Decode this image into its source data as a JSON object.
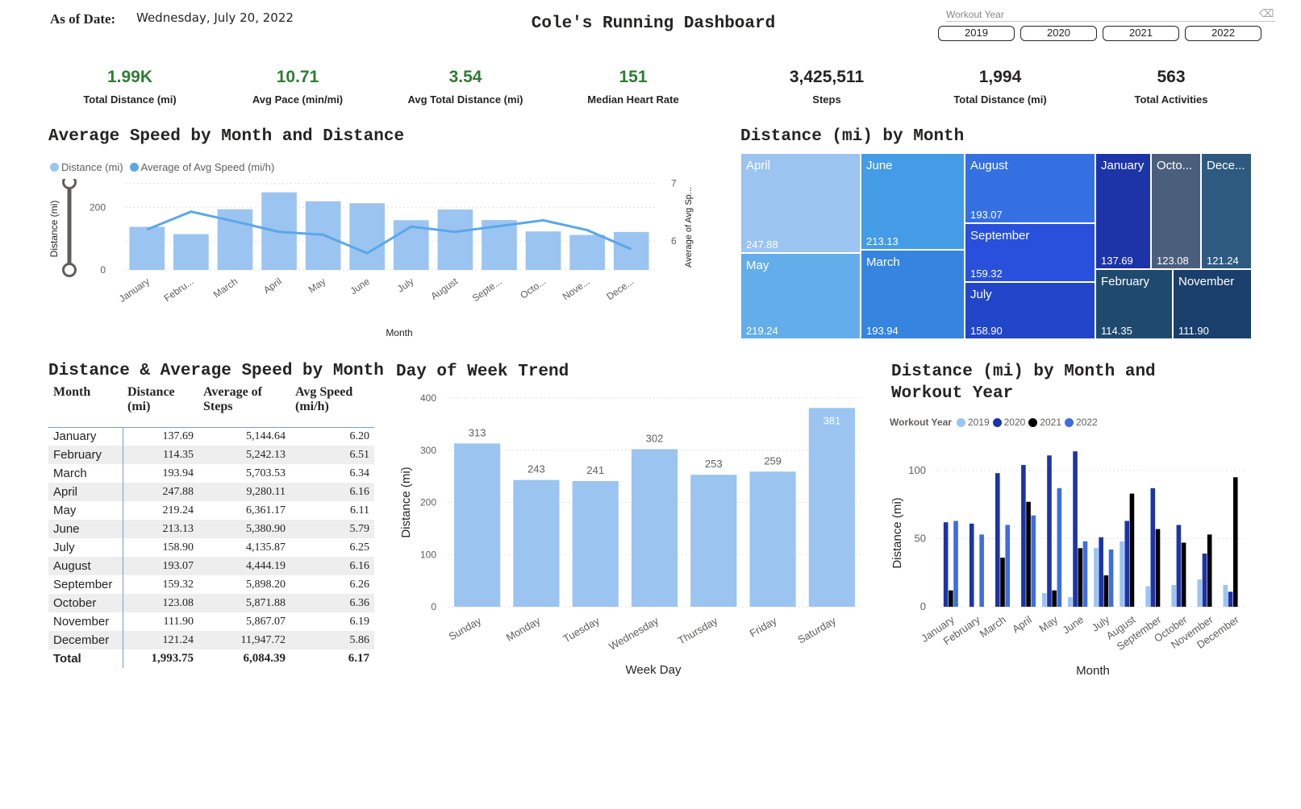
{
  "header": {
    "as_of_label": "As of Date:",
    "as_of_value": "Wednesday, July 20, 2022",
    "title": "Cole's Running Dashboard"
  },
  "slicer": {
    "title": "Workout Year",
    "eraser_icon": "eraser-icon",
    "years": [
      "2019",
      "2020",
      "2021",
      "2022"
    ]
  },
  "kpis": [
    {
      "value": "1.99K",
      "label": "Total Distance (mi)",
      "color": "#2e7d32"
    },
    {
      "value": "10.71",
      "label": "Avg Pace (min/mi)",
      "color": "#2e7d32"
    },
    {
      "value": "3.54",
      "label": "Avg Total Distance (mi)",
      "color": "#2e7d32"
    },
    {
      "value": "151",
      "label": "Median Heart Rate",
      "color": "#2e7d32"
    },
    {
      "value": "3,425,511",
      "label": "Steps",
      "color": "#252423"
    },
    {
      "value": "1,994",
      "label": "Total Distance (mi)",
      "color": "#252423"
    },
    {
      "value": "563",
      "label": "Total Activities",
      "color": "#252423"
    }
  ],
  "titles": {
    "speed_chart": "Average Speed by Month and Distance",
    "treemap": "Distance (mi) by Month",
    "table": "Distance & Average Speed by Month",
    "dow": "Day of Week Trend",
    "year_chart_line1": "Distance (mi) by Month and",
    "year_chart_line2": "Workout Year"
  },
  "colors": {
    "bar_light": "#9bc4f1",
    "line": "#5aa7e8",
    "y2019": "#9bc4f1",
    "y2020": "#1c34a8",
    "y2021": "#000000",
    "y2022": "#3d6ee0"
  },
  "chart_data": [
    {
      "type": "bar",
      "name": "speed-combo",
      "title": "Average Speed by Month and Distance",
      "categories": [
        "January",
        "Febru...",
        "March",
        "April",
        "May",
        "June",
        "July",
        "August",
        "Septe...",
        "Octo...",
        "Nove...",
        "Dece..."
      ],
      "values": [
        137.69,
        114.35,
        193.94,
        247.88,
        219.24,
        213.13,
        158.9,
        193.07,
        159.32,
        123.08,
        111.9,
        121.24
      ],
      "line": {
        "name": "Average of Avg Speed (mi/h)",
        "values": [
          6.2,
          6.51,
          6.34,
          6.16,
          6.11,
          5.79,
          6.25,
          6.16,
          6.26,
          6.36,
          6.19,
          5.86
        ]
      },
      "legend": [
        "Distance (mi)",
        "Average of Avg Speed (mi/h)"
      ],
      "xlabel": "Month",
      "ylabel": "Distance (mi)",
      "y2label": "Average of Avg Sp...",
      "yticks": [
        "0",
        "200"
      ],
      "y2ticks": [
        "6",
        "7"
      ],
      "ylim": [
        0,
        260
      ],
      "y2lim": [
        5.5,
        7.05
      ]
    },
    {
      "type": "treemap",
      "name": "distance-treemap",
      "title": "Distance (mi) by Month",
      "cells": [
        {
          "label": "April",
          "value": "247.88",
          "color": "#9bc4f1"
        },
        {
          "label": "May",
          "value": "219.24",
          "color": "#63aeea"
        },
        {
          "label": "June",
          "value": "213.13",
          "color": "#449ce6"
        },
        {
          "label": "March",
          "value": "193.94",
          "color": "#3484e0"
        },
        {
          "label": "August",
          "value": "193.07",
          "color": "#3570e2"
        },
        {
          "label": "September",
          "value": "159.32",
          "color": "#2850dc"
        },
        {
          "label": "July",
          "value": "158.90",
          "color": "#2146c9"
        },
        {
          "label": "January",
          "value": "137.69",
          "color": "#1c34a8"
        },
        {
          "label": "Octo...",
          "value": "123.08",
          "color": "#4b5f7c"
        },
        {
          "label": "Dece...",
          "value": "121.24",
          "color": "#2e5a7f"
        },
        {
          "label": "February",
          "value": "114.35",
          "color": "#1f4a6e"
        },
        {
          "label": "November",
          "value": "111.90",
          "color": "#1a3f6c"
        }
      ]
    },
    {
      "type": "table",
      "name": "monthly-table",
      "title": "Distance & Average Speed by Month",
      "columns": [
        "Month",
        "Distance (mi)",
        "Average of Steps",
        "Avg Speed (mi/h)"
      ],
      "rows": [
        [
          "January",
          "137.69",
          "5,144.64",
          "6.20"
        ],
        [
          "February",
          "114.35",
          "5,242.13",
          "6.51"
        ],
        [
          "March",
          "193.94",
          "5,703.53",
          "6.34"
        ],
        [
          "April",
          "247.88",
          "9,280.11",
          "6.16"
        ],
        [
          "May",
          "219.24",
          "6,361.17",
          "6.11"
        ],
        [
          "June",
          "213.13",
          "5,380.90",
          "5.79"
        ],
        [
          "July",
          "158.90",
          "4,135.87",
          "6.25"
        ],
        [
          "August",
          "193.07",
          "4,444.19",
          "6.16"
        ],
        [
          "September",
          "159.32",
          "5,898.20",
          "6.26"
        ],
        [
          "October",
          "123.08",
          "5,871.88",
          "6.36"
        ],
        [
          "November",
          "111.90",
          "5,867.07",
          "6.19"
        ],
        [
          "December",
          "121.24",
          "11,947.72",
          "5.86"
        ]
      ],
      "total": [
        "Total",
        "1,993.75",
        "6,084.39",
        "6.17"
      ]
    },
    {
      "type": "bar",
      "name": "dow-bar",
      "title": "Day of Week Trend",
      "categories": [
        "Sunday",
        "Monday",
        "Tuesday",
        "Wednesday",
        "Thursday",
        "Friday",
        "Saturday"
      ],
      "values": [
        313,
        243,
        241,
        302,
        253,
        259,
        381
      ],
      "xlabel": "Week Day",
      "ylabel": "Distance (mi)",
      "yticks": [
        0,
        100,
        200,
        300,
        400
      ],
      "ylim": [
        0,
        400
      ]
    },
    {
      "type": "bar",
      "name": "year-clustered-bar",
      "title": "Distance (mi) by Month and Workout Year",
      "legend_title": "Workout Year",
      "categories": [
        "January",
        "February",
        "March",
        "April",
        "May",
        "June",
        "July",
        "August",
        "September",
        "October",
        "November",
        "December"
      ],
      "series": [
        {
          "name": "2019",
          "values": [
            0,
            0,
            0,
            0,
            10,
            7,
            43,
            48,
            15,
            16,
            20,
            16
          ]
        },
        {
          "name": "2020",
          "values": [
            62,
            61,
            98,
            104,
            111,
            114,
            51,
            63,
            87,
            60,
            39,
            11
          ]
        },
        {
          "name": "2021",
          "values": [
            12,
            0,
            36,
            77,
            12,
            43,
            23,
            83,
            57,
            47,
            53,
            95
          ]
        },
        {
          "name": "2022",
          "values": [
            63,
            53,
            60,
            67,
            87,
            48,
            42,
            0,
            0,
            0,
            0,
            0
          ]
        }
      ],
      "xlabel": "Month",
      "ylabel": "Distance (mi)",
      "yticks": [
        0,
        50,
        100
      ],
      "ylim": [
        0,
        120
      ]
    }
  ]
}
